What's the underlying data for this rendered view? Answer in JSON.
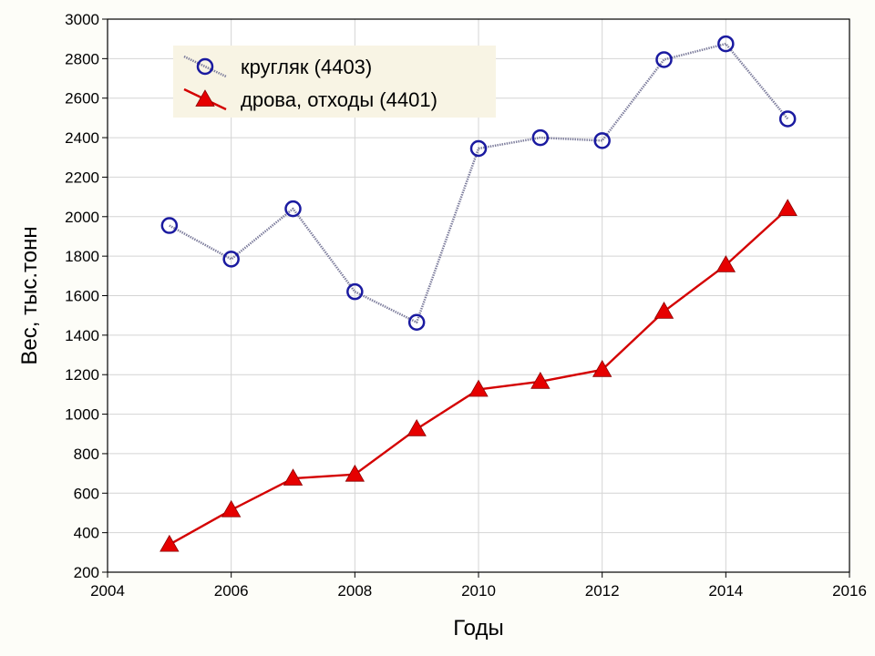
{
  "chart_data": {
    "type": "line",
    "xlabel": "Годы",
    "ylabel": "Вес, тыс.тонн",
    "xlim": [
      2004,
      2016
    ],
    "ylim": [
      200,
      3000
    ],
    "xticks": [
      "2004",
      "2006",
      "2008",
      "2010",
      "2012",
      "2014",
      "2016"
    ],
    "yticks": [
      "200",
      "400",
      "600",
      "800",
      "1000",
      "1200",
      "1400",
      "1600",
      "1800",
      "2000",
      "2200",
      "2400",
      "2600",
      "2800",
      "3000"
    ],
    "grid": true,
    "legend_position": "top-left",
    "x": [
      2005,
      2006,
      2007,
      2008,
      2009,
      2010,
      2011,
      2012,
      2013,
      2014,
      2015
    ],
    "series": [
      {
        "name": "кругляк (4403)",
        "color": "#1a1aa0",
        "line_color": "#7a7a9a",
        "marker": "circle",
        "line_style": "dotted",
        "values": [
          1955,
          1785,
          2040,
          1620,
          1465,
          2345,
          2400,
          2385,
          2795,
          2875,
          2495
        ]
      },
      {
        "name": "дрова, отходы (4401)",
        "color": "#e60000",
        "line_color": "#d40000",
        "marker": "triangle",
        "line_style": "solid",
        "values": [
          340,
          515,
          675,
          695,
          925,
          1125,
          1165,
          1225,
          1520,
          1755,
          2040
        ]
      }
    ]
  }
}
